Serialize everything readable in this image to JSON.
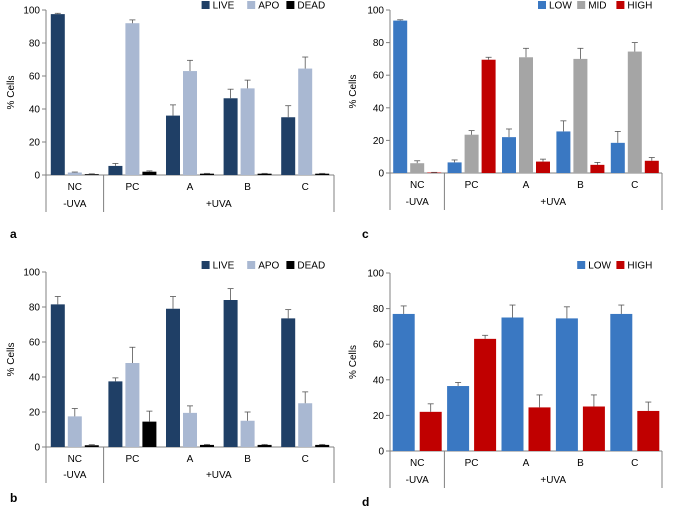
{
  "colors": {
    "LIVE": "#1f3f66",
    "APO": "#a9b8d2",
    "DEAD": "#000000",
    "LOW": "#3a78c2",
    "MID": "#a5a5a5",
    "HIGH": "#c00000",
    "axis": "#808080",
    "text": "#000000"
  },
  "chart_data": [
    {
      "panel_label": "a",
      "type": "bar",
      "ylabel": "% Cells",
      "ylim": [
        0,
        100
      ],
      "yticks": [
        0,
        20,
        40,
        60,
        80,
        100
      ],
      "categories": [
        "NC",
        "PC",
        "A",
        "B",
        "C"
      ],
      "groups": [
        {
          "label": "-UVA",
          "span": [
            0,
            0
          ]
        },
        {
          "label": "+UVA",
          "span": [
            1,
            4
          ]
        }
      ],
      "legend_position": "top-right",
      "series": [
        {
          "name": "LIVE",
          "values": [
            97.5,
            5.5,
            36,
            46.5,
            35
          ],
          "errors": [
            0.5,
            1.5,
            6.5,
            5.5,
            7
          ]
        },
        {
          "name": "APO",
          "values": [
            1.5,
            92,
            63,
            52.5,
            64.5
          ],
          "errors": [
            0.3,
            2,
            6.5,
            5,
            7
          ]
        },
        {
          "name": "DEAD",
          "values": [
            0.5,
            2,
            0.8,
            0.8,
            0.8
          ],
          "errors": [
            0.2,
            0.5,
            0.2,
            0.2,
            0.2
          ]
        }
      ]
    },
    {
      "panel_label": "c",
      "type": "bar",
      "ylabel": "% Cells",
      "ylim": [
        0,
        100
      ],
      "yticks": [
        0,
        20,
        40,
        60,
        80,
        100
      ],
      "categories": [
        "NC",
        "PC",
        "A",
        "B",
        "C"
      ],
      "groups": [
        {
          "label": "-UVA",
          "span": [
            0,
            0
          ]
        },
        {
          "label": "+UVA",
          "span": [
            1,
            4
          ]
        }
      ],
      "legend_position": "top-right",
      "series": [
        {
          "name": "LOW",
          "values": [
            93.5,
            6.5,
            22,
            25.5,
            18.5
          ],
          "errors": [
            0.5,
            1.5,
            5,
            6.5,
            7
          ]
        },
        {
          "name": "MID",
          "values": [
            6,
            23.5,
            71,
            70,
            74.5
          ],
          "errors": [
            1.5,
            2.5,
            5.5,
            6.5,
            5.5
          ]
        },
        {
          "name": "HIGH",
          "values": [
            0.3,
            69.5,
            7,
            5,
            7.5
          ],
          "errors": [
            0.1,
            1.5,
            1.5,
            1.5,
            2
          ]
        }
      ]
    },
    {
      "panel_label": "b",
      "type": "bar",
      "ylabel": "% Cells",
      "ylim": [
        0,
        100
      ],
      "yticks": [
        0,
        20,
        40,
        60,
        80,
        100
      ],
      "categories": [
        "NC",
        "PC",
        "A",
        "B",
        "C"
      ],
      "groups": [
        {
          "label": "-UVA",
          "span": [
            0,
            0
          ]
        },
        {
          "label": "+UVA",
          "span": [
            1,
            4
          ]
        }
      ],
      "legend_position": "top-right",
      "series": [
        {
          "name": "LIVE",
          "values": [
            81.5,
            37.5,
            79,
            84,
            73.5
          ],
          "errors": [
            4.5,
            2,
            7,
            6.5,
            5
          ]
        },
        {
          "name": "APO",
          "values": [
            17.5,
            48,
            19.5,
            15,
            25
          ],
          "errors": [
            4.5,
            9,
            4,
            5,
            6.5
          ]
        },
        {
          "name": "DEAD",
          "values": [
            1,
            14.5,
            1.2,
            1.2,
            1.2
          ],
          "errors": [
            0.3,
            6,
            0.3,
            0.3,
            0.3
          ]
        }
      ]
    },
    {
      "panel_label": "d",
      "type": "bar",
      "ylabel": "% Cells",
      "ylim": [
        0,
        100
      ],
      "yticks": [
        0,
        20,
        40,
        60,
        80,
        100
      ],
      "categories": [
        "NC",
        "PC",
        "A",
        "B",
        "C"
      ],
      "groups": [
        {
          "label": "-UVA",
          "span": [
            0,
            0
          ]
        },
        {
          "label": "+UVA",
          "span": [
            1,
            4
          ]
        }
      ],
      "legend_position": "top-right",
      "series": [
        {
          "name": "LOW",
          "values": [
            77,
            36.5,
            75,
            74.5,
            77
          ],
          "errors": [
            4.5,
            2,
            7,
            6.5,
            5
          ]
        },
        {
          "name": "HIGH",
          "values": [
            22,
            63,
            24.5,
            25,
            22.5
          ],
          "errors": [
            4.5,
            2,
            7,
            6.5,
            5
          ]
        }
      ]
    }
  ]
}
